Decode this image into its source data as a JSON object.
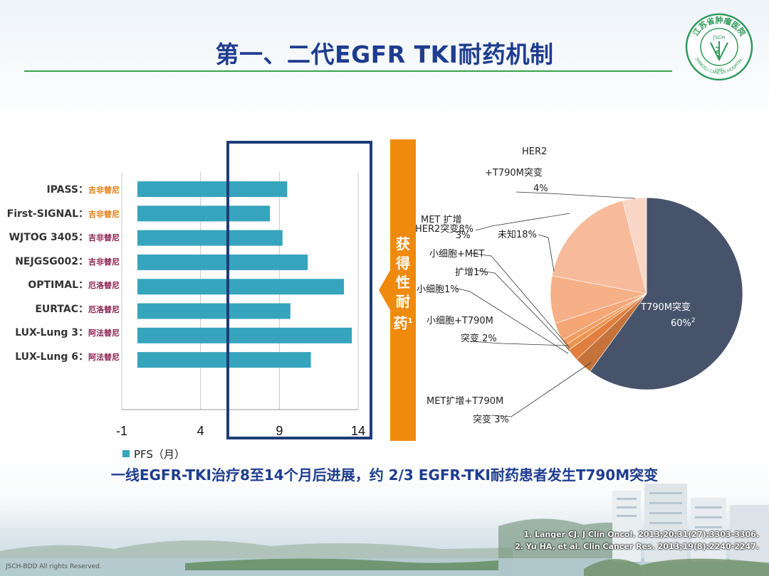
{
  "title": "第一、二代EGFR TKI耐药机制",
  "colors": {
    "bar": "#37a4bd",
    "title": "#1f3d8f",
    "rule": "#37a34a",
    "arrow": "#f08a0c",
    "box": "#1f3c78"
  },
  "chart_data": [
    {
      "type": "bar",
      "orientation": "horizontal",
      "categories": [
        {
          "study": "IPASS：",
          "drug": "吉非替尼",
          "drug_color": "#e07b0e"
        },
        {
          "study": "First-SIGNAL：",
          "drug": "吉非替尼",
          "drug_color": "#e07b0e"
        },
        {
          "study": "WJTOG 3405：",
          "drug": "吉非替尼",
          "drug_color": "#8a1f4f"
        },
        {
          "study": "NEJGSG002：",
          "drug": "吉非替尼",
          "drug_color": "#8a1f4f"
        },
        {
          "study": "OPTIMAL：",
          "drug": "厄洛替尼",
          "drug_color": "#8a1f4f"
        },
        {
          "study": "EURTAC：",
          "drug": "厄洛替尼",
          "drug_color": "#8a1f4f"
        },
        {
          "study": "LUX-Lung 3：",
          "drug": "阿法替尼",
          "drug_color": "#8a1f4f"
        },
        {
          "study": "LUX-Lung 6：",
          "drug": "阿法替尼",
          "drug_color": "#8a1f4f"
        }
      ],
      "values": [
        9.5,
        8.4,
        9.2,
        10.8,
        13.1,
        9.7,
        13.6,
        11.0
      ],
      "xlim": [
        -1,
        14
      ],
      "xticks": [
        "-1",
        "4",
        "9",
        "14"
      ],
      "legend": "PFS（月）",
      "grid": true
    },
    {
      "type": "pie",
      "slices": [
        {
          "label": "T790M突变",
          "value": 60,
          "color": "#47536b"
        },
        {
          "label": "MET扩增+T790M突变",
          "value": 3,
          "color": "#c5733b"
        },
        {
          "label": "小细胞+T790M突变",
          "value": 2,
          "color": "#e07f3e"
        },
        {
          "label": "小细胞",
          "value": 1,
          "color": "#eb9552"
        },
        {
          "label": "小细胞+MET扩增",
          "value": 1,
          "color": "#f19d62"
        },
        {
          "label": "MET扩增",
          "value": 3,
          "color": "#f4a675"
        },
        {
          "label": "HER2突变",
          "value": 8,
          "color": "#f6b088"
        },
        {
          "label": "未知",
          "value": 18,
          "color": "#f7bb9b"
        },
        {
          "label": "HER2+T790M突变",
          "value": 4,
          "color": "#f9d6c5"
        }
      ]
    }
  ],
  "pie_labels": {
    "t790m": "T790M突变",
    "t790m_pct": "60%",
    "t790m_sup": "2",
    "her2_t790m_1": "HER2",
    "her2_t790m_2": "+T790M突变",
    "her2_t790m_3": "4%",
    "met_amp_1": "MET  扩增",
    "met_amp_2": "3%",
    "her2": "HER2突变8%",
    "unknown": "未知18%",
    "sclc_met_1": "小细胞+MET",
    "sclc_met_2": "扩增1%",
    "sclc": "小细胞1%",
    "sclc_t790m_1": "小细胞+T790M",
    "sclc_t790m_2": "突变 2%",
    "met_t790m_1": "MET扩增+T790M",
    "met_t790m_2": "突变 3%"
  },
  "arrow_text": [
    "获",
    "得",
    "性",
    "耐",
    "药"
  ],
  "arrow_sup": "1",
  "conclusion": "一线EGFR-TKI治疗8至14个月后进展，约 2/3 EGFR-TKI耐药患者发生T790M突变",
  "references": [
    "1. Langer CJ. J Clin Oncol. 2013;20;31(27):3303-3306.",
    "2. Yu HA, et al. Clin Cancer Res. 2013;19(8):2240-2247."
  ],
  "footer": "JSCH-BDD    All rights Reserved.",
  "logo": {
    "top_text": "江苏省肿瘤医院",
    "bottom_text": "JIANGSU CANCER HOSPITAL",
    "mid_text": "JSCH",
    "year": "1960"
  }
}
